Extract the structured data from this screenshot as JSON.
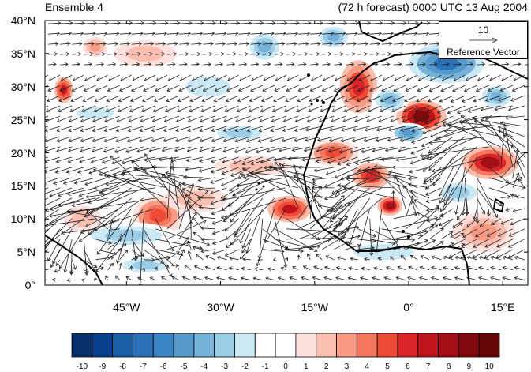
{
  "title_left": "Ensemble 4",
  "title_right": "(72 h forecast) 0000 UTC 13 Aug 2004",
  "map": {
    "lon_range": [
      -58,
      19
    ],
    "lat_range": [
      0,
      40
    ],
    "lat_labels": [
      {
        "value": 0,
        "label": "0°"
      },
      {
        "value": 5,
        "label": "5°N"
      },
      {
        "value": 10,
        "label": "10°N"
      },
      {
        "value": 15,
        "label": "15°N"
      },
      {
        "value": 20,
        "label": "20°N"
      },
      {
        "value": 25,
        "label": "25°N"
      },
      {
        "value": 30,
        "label": "30°N"
      },
      {
        "value": 35,
        "label": "35°N"
      },
      {
        "value": 40,
        "label": "40°N"
      }
    ],
    "lon_labels": [
      {
        "value": -45,
        "label": "45°W"
      },
      {
        "value": -30,
        "label": "30°W"
      },
      {
        "value": -15,
        "label": "15°W"
      },
      {
        "value": 0,
        "label": "0°"
      },
      {
        "value": 15,
        "label": "15°E"
      }
    ],
    "reference_vector": {
      "magnitude": "10",
      "label": "Reference Vector"
    },
    "anomalies": [
      {
        "lon": 2,
        "lat": 25.5,
        "value": 9,
        "rx": 4,
        "ry": 2.5
      },
      {
        "lon": 13,
        "lat": 18.5,
        "value": 8,
        "rx": 4.5,
        "ry": 2.5
      },
      {
        "lon": -19,
        "lat": 11.5,
        "value": 7,
        "rx": 3.5,
        "ry": 2
      },
      {
        "lon": -3,
        "lat": 12,
        "value": 8,
        "rx": 2,
        "ry": 1.5
      },
      {
        "lon": -6,
        "lat": 16.5,
        "value": 6,
        "rx": 3,
        "ry": 2
      },
      {
        "lon": -40,
        "lat": 10.5,
        "value": 5,
        "rx": 4,
        "ry": 3
      },
      {
        "lon": -55,
        "lat": 29.5,
        "value": 7,
        "rx": 1.5,
        "ry": 2
      },
      {
        "lon": -8,
        "lat": 30,
        "value": 6,
        "rx": 3,
        "ry": 4
      },
      {
        "lon": -12,
        "lat": 20,
        "value": 5,
        "rx": 4,
        "ry": 2
      },
      {
        "lon": -42,
        "lat": 35,
        "value": 2,
        "rx": 5,
        "ry": 2
      },
      {
        "lon": -50,
        "lat": 36,
        "value": 3,
        "rx": 2,
        "ry": 1.5
      },
      {
        "lon": 6,
        "lat": 33.5,
        "value": -7,
        "rx": 6,
        "ry": 3
      },
      {
        "lon": 0,
        "lat": 23,
        "value": -5,
        "rx": 3,
        "ry": 1.5
      },
      {
        "lon": -3,
        "lat": 28,
        "value": -4,
        "rx": 3,
        "ry": 2
      },
      {
        "lon": -23,
        "lat": 36,
        "value": -4,
        "rx": 3,
        "ry": 2.5
      },
      {
        "lon": -12,
        "lat": 37.5,
        "value": -4,
        "rx": 3,
        "ry": 2
      },
      {
        "lon": -45,
        "lat": 7.5,
        "value": -3,
        "rx": 8,
        "ry": 2
      },
      {
        "lon": -42,
        "lat": 3,
        "value": -3,
        "rx": 5,
        "ry": 1.5
      },
      {
        "lon": -27,
        "lat": 23,
        "value": -3,
        "rx": 5,
        "ry": 1.5
      },
      {
        "lon": -32,
        "lat": 30,
        "value": -2,
        "rx": 6,
        "ry": 2.5
      },
      {
        "lon": -50,
        "lat": 26,
        "value": -2,
        "rx": 5,
        "ry": 1.5
      },
      {
        "lon": -4,
        "lat": 5,
        "value": -2,
        "rx": 8,
        "ry": 2
      },
      {
        "lon": 12,
        "lat": 8,
        "value": 3,
        "rx": 5,
        "ry": 3
      },
      {
        "lon": 14,
        "lat": 28.5,
        "value": -4,
        "rx": 3,
        "ry": 2
      },
      {
        "lon": -34,
        "lat": 13,
        "value": 2,
        "rx": 5,
        "ry": 2
      },
      {
        "lon": -25,
        "lat": 18,
        "value": 2,
        "rx": 6,
        "ry": 1.5
      },
      {
        "lon": 8,
        "lat": 14,
        "value": -3,
        "rx": 4,
        "ry": 2
      },
      {
        "lon": -52,
        "lat": 10,
        "value": 2,
        "rx": 3,
        "ry": 2
      }
    ]
  },
  "colorbar": {
    "colors": [
      "#08306b",
      "#08408c",
      "#1b5fa8",
      "#2b72b8",
      "#3b84c4",
      "#5699cc",
      "#75b1d8",
      "#9ccde6",
      "#cbe8f5",
      "#ffffff",
      "#ffffff",
      "#fde1dd",
      "#fbbdae",
      "#f89a84",
      "#f5765d",
      "#ef4a35",
      "#d92528",
      "#c0141d",
      "#a40e15",
      "#7f0a0c",
      "#650505"
    ],
    "labels": [
      "-10",
      "-9",
      "-8",
      "-7",
      "-6",
      "-5",
      "-4",
      "-3",
      "-2",
      "-1",
      "0",
      "1",
      "2",
      "3",
      "4",
      "5",
      "6",
      "7",
      "8",
      "9",
      "10"
    ]
  }
}
